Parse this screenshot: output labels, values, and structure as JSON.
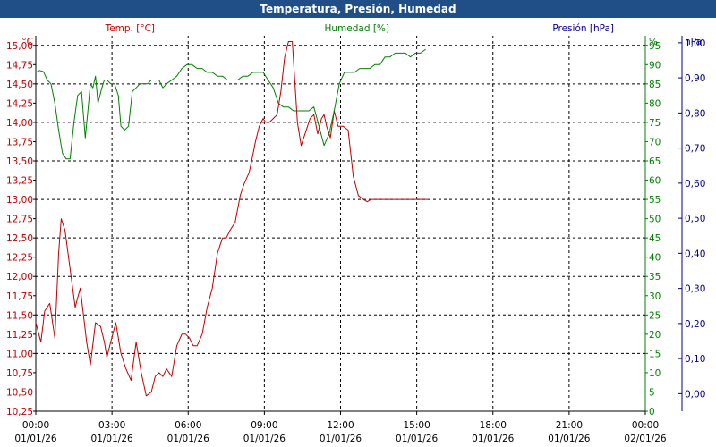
{
  "window": {
    "title": "Temperatura, Presión, Humedad"
  },
  "chart_data": {
    "type": "line",
    "title": "Temperatura, Presión, Humedad",
    "x_ticks": [
      {
        "time": "00:00",
        "date": "01/01/26"
      },
      {
        "time": "03:00",
        "date": "01/01/26"
      },
      {
        "time": "06:00",
        "date": "01/01/26"
      },
      {
        "time": "09:00",
        "date": "01/01/26"
      },
      {
        "time": "12:00",
        "date": "01/01/26"
      },
      {
        "time": "15:00",
        "date": "01/01/26"
      },
      {
        "time": "18:00",
        "date": "01/01/26"
      },
      {
        "time": "21:00",
        "date": "01/01/26"
      },
      {
        "time": "00:00",
        "date": "02/01/26"
      }
    ],
    "axes": {
      "temperature": {
        "label": "Temp. [°C]",
        "unit": "°C",
        "min": 10.25,
        "max": 15.125,
        "ticks": [
          "10,25",
          "10,50",
          "10,75",
          "11,00",
          "11,25",
          "11,50",
          "11,75",
          "12,00",
          "12,25",
          "12,50",
          "12,75",
          "13,00",
          "13,25",
          "13,50",
          "13,75",
          "14,00",
          "14,25",
          "14,50",
          "14,75",
          "15,00"
        ],
        "color": "#c00000"
      },
      "humidity": {
        "label": "Humedad [%]",
        "unit": "%",
        "min": 0,
        "max": 97.5,
        "ticks": [
          "0",
          "5",
          "10",
          "15",
          "20",
          "25",
          "30",
          "35",
          "40",
          "45",
          "50",
          "55",
          "60",
          "65",
          "70",
          "75",
          "80",
          "85",
          "90",
          "95"
        ],
        "color": "#008000"
      },
      "pressure": {
        "label": "Presión [hPa]",
        "unit": "hPa",
        "min": -0.05,
        "max": 1.02,
        "ticks": [
          "0,00",
          "0,10",
          "0,20",
          "0,30",
          "0,40",
          "0,50",
          "0,60",
          "0,70",
          "0,80",
          "0,90",
          "1,00"
        ],
        "color": "#00008b"
      }
    },
    "grid": true,
    "series": [
      {
        "name": "Temp. [°C]",
        "axis": "temperature",
        "color": "#c00000",
        "x_hours": [
          0.0,
          0.2,
          0.35,
          0.55,
          0.75,
          0.9,
          1.0,
          1.15,
          1.35,
          1.55,
          1.75,
          2.0,
          2.15,
          2.35,
          2.55,
          2.7,
          2.8,
          2.95,
          3.15,
          3.35,
          3.55,
          3.75,
          3.95,
          4.15,
          4.35,
          4.55,
          4.7,
          4.85,
          5.0,
          5.15,
          5.35,
          5.55,
          5.75,
          5.9,
          6.05,
          6.2,
          6.35,
          6.55,
          6.75,
          6.95,
          7.15,
          7.35,
          7.5,
          7.65,
          7.85,
          8.05,
          8.2,
          8.4,
          8.5,
          8.65,
          8.8,
          8.95,
          9.05,
          9.2,
          9.35,
          9.5,
          9.65,
          9.8,
          9.95,
          10.1,
          10.3,
          10.45,
          10.6,
          10.8,
          10.95,
          11.1,
          11.25,
          11.35,
          11.45,
          11.6,
          11.75,
          11.9,
          12.1,
          12.3,
          12.5,
          12.7,
          12.9,
          13.05,
          13.2,
          13.35,
          13.55,
          13.75,
          13.9,
          14.1,
          14.25,
          14.4,
          14.55,
          14.75,
          14.9,
          15.05,
          15.25,
          15.45
        ],
        "values": [
          11.4,
          11.15,
          11.55,
          11.65,
          11.2,
          12.3,
          12.75,
          12.6,
          12.1,
          11.6,
          11.85,
          11.15,
          10.85,
          11.4,
          11.35,
          11.15,
          10.95,
          11.15,
          11.4,
          11.0,
          10.8,
          10.65,
          11.15,
          10.75,
          10.45,
          10.5,
          10.7,
          10.75,
          10.7,
          10.8,
          10.7,
          11.1,
          11.25,
          11.25,
          11.2,
          11.1,
          11.1,
          11.25,
          11.6,
          11.85,
          12.3,
          12.5,
          12.5,
          12.6,
          12.7,
          13.05,
          13.2,
          13.35,
          13.5,
          13.75,
          13.95,
          14.05,
          14.0,
          14.0,
          14.05,
          14.1,
          14.4,
          14.85,
          15.05,
          15.05,
          14.0,
          13.7,
          13.85,
          14.05,
          14.1,
          13.85,
          14.05,
          14.1,
          13.95,
          13.8,
          14.15,
          13.95,
          13.95,
          13.9,
          13.3,
          13.05,
          13.0,
          12.97,
          13.0,
          13.0,
          13.0,
          13.0,
          13.0,
          13.0,
          13.0,
          13.0,
          13.0,
          13.0,
          13.0,
          13.0,
          13.0,
          13.0
        ]
      },
      {
        "name": "Humedad [%]",
        "axis": "humidity",
        "color": "#008000",
        "x_hours": [
          0.0,
          0.15,
          0.3,
          0.45,
          0.6,
          0.75,
          0.9,
          1.05,
          1.2,
          1.35,
          1.5,
          1.65,
          1.8,
          1.95,
          2.05,
          2.15,
          2.25,
          2.35,
          2.45,
          2.6,
          2.7,
          2.8,
          2.95,
          3.1,
          3.25,
          3.35,
          3.5,
          3.65,
          3.8,
          3.95,
          4.1,
          4.25,
          4.4,
          4.55,
          4.7,
          4.85,
          5.0,
          5.15,
          5.35,
          5.55,
          5.75,
          5.95,
          6.15,
          6.35,
          6.55,
          6.75,
          6.95,
          7.15,
          7.35,
          7.55,
          7.75,
          7.95,
          8.15,
          8.35,
          8.55,
          8.75,
          8.95,
          9.15,
          9.35,
          9.55,
          9.75,
          9.95,
          10.15,
          10.35,
          10.55,
          10.75,
          10.95,
          11.15,
          11.35,
          11.55,
          11.75,
          11.95,
          12.15,
          12.35,
          12.55,
          12.75,
          12.95,
          13.15,
          13.35,
          13.55,
          13.75,
          13.95,
          14.15,
          14.35,
          14.55,
          14.75,
          14.95,
          15.15,
          15.35
        ],
        "values": [
          88,
          88.5,
          88.2,
          86,
          85,
          80,
          73,
          67,
          65.5,
          65.5,
          75,
          82,
          83,
          71,
          78,
          85,
          84,
          87,
          80,
          84,
          86,
          86,
          85,
          85,
          82,
          74,
          73,
          74,
          83,
          84,
          85,
          85,
          85,
          86,
          86,
          86,
          84,
          85,
          86,
          87,
          89,
          90,
          90,
          89,
          89,
          88,
          88,
          87,
          87,
          86,
          86,
          86,
          87,
          87,
          88,
          88,
          88,
          86,
          84,
          80,
          79,
          79,
          78,
          78,
          78,
          78,
          79,
          74,
          69,
          72,
          78,
          85,
          88,
          88,
          88,
          89,
          89,
          89,
          90,
          90,
          92,
          92,
          93,
          93,
          93,
          92,
          93,
          93,
          94
        ]
      },
      {
        "name": "Presión [hPa]",
        "axis": "pressure",
        "color": "#00008b",
        "x_hours": [],
        "values": []
      }
    ]
  }
}
